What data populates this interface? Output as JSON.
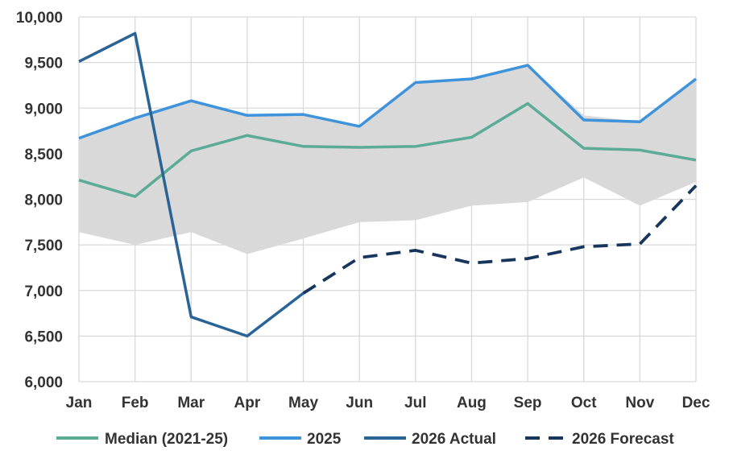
{
  "chart_data": {
    "type": "line",
    "categories": [
      "Jan",
      "Feb",
      "Mar",
      "Apr",
      "May",
      "Jun",
      "Jul",
      "Aug",
      "Sep",
      "Oct",
      "Nov",
      "Dec"
    ],
    "ylim": [
      6000,
      10000
    ],
    "ytick_values": [
      6000,
      6500,
      7000,
      7500,
      8000,
      8500,
      9000,
      9500,
      10000
    ],
    "ytick_labels": [
      "6,000",
      "6,500",
      "7,000",
      "7,500",
      "8,000",
      "8,500",
      "9,000",
      "9,500",
      "10,000"
    ],
    "grid": true,
    "legend_position": "bottom",
    "range_band": {
      "color": "#d9d9d9",
      "low": [
        7640,
        7500,
        7640,
        7400,
        7570,
        7750,
        7770,
        7930,
        7970,
        8240,
        7930,
        8190
      ],
      "high": [
        8670,
        8890,
        9080,
        8920,
        8930,
        8800,
        9280,
        9320,
        9470,
        8920,
        8850,
        9320
      ]
    },
    "series": [
      {
        "name": "Median (2021-25)",
        "color": "#5bab96",
        "dash": "solid",
        "values": [
          8210,
          8030,
          8530,
          8700,
          8580,
          8570,
          8580,
          8680,
          9050,
          8560,
          8540,
          8430
        ]
      },
      {
        "name": "2025",
        "color": "#3f93da",
        "dash": "solid",
        "values": [
          8670,
          8890,
          9080,
          8920,
          8930,
          8800,
          9280,
          9320,
          9470,
          8870,
          8850,
          9320
        ]
      },
      {
        "name": "2026 Actual",
        "color": "#2a6496",
        "dash": "solid",
        "values": [
          9510,
          9820,
          6710,
          6500,
          6970,
          null,
          null,
          null,
          null,
          null,
          null,
          null
        ]
      },
      {
        "name": "2026 Forecast",
        "color": "#16365c",
        "dash": "dashed",
        "values": [
          null,
          null,
          null,
          null,
          6970,
          7360,
          7440,
          7300,
          7350,
          7480,
          7510,
          8150
        ]
      }
    ]
  }
}
